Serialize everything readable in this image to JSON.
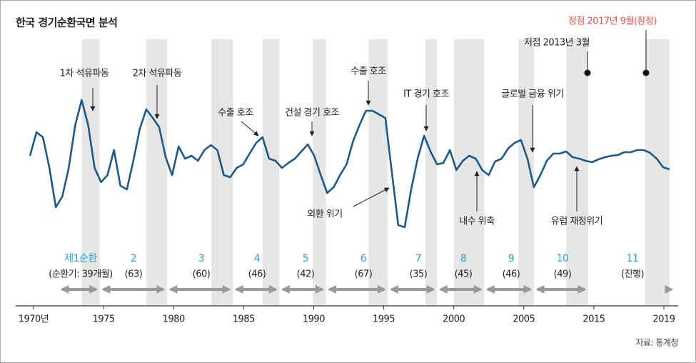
{
  "chart_data": {
    "type": "line",
    "title": "한국 경기순환국면 분석",
    "source": "자료: 통계청",
    "color": "#1d5a87",
    "band_color": "#e6e6e6",
    "xlim": [
      1970,
      2019.5
    ],
    "ylim": [
      0,
      125
    ],
    "x": [
      1970,
      1970.5,
      1971,
      1971.5,
      1972,
      1972.5,
      1973,
      1973.5,
      1974,
      1974.5,
      1975,
      1975.5,
      1976,
      1976.5,
      1977,
      1977.5,
      1978,
      1978.5,
      1979,
      1979.5,
      1980,
      1980.5,
      1981,
      1981.5,
      1982,
      1982.5,
      1983,
      1983.5,
      1984,
      1984.5,
      1985,
      1985.5,
      1986,
      1986.5,
      1987,
      1987.5,
      1988,
      1988.5,
      1989,
      1989.5,
      1990,
      1990.5,
      1991,
      1991.5,
      1992,
      1992.5,
      1993,
      1993.5,
      1994,
      1994.5,
      1995,
      1995.5,
      1996,
      1996.5,
      1997,
      1997.5,
      1998,
      1998.5,
      1999,
      1999.5,
      2000,
      2000.5,
      2001,
      2001.5,
      2002,
      2002.5,
      2003,
      2003.5,
      2004,
      2004.5,
      2005,
      2005.5,
      2006,
      2006.5,
      2007,
      2007.5,
      2008,
      2008.5,
      2009,
      2009.5,
      2010,
      2010.5,
      2011,
      2011.5,
      2012,
      2012.5,
      2013,
      2013.5,
      2014,
      2014.5,
      2015,
      2015.5,
      2016,
      2016.5,
      2017,
      2017.5,
      2018,
      2018.5,
      2019,
      2019.5
    ],
    "values": [
      66,
      82.5,
      79,
      57.5,
      30,
      37.5,
      57.5,
      87.5,
      105,
      87.5,
      57.5,
      47.5,
      52.5,
      70,
      45,
      42.5,
      62.5,
      85,
      98.5,
      92.5,
      86,
      65,
      52.5,
      72.5,
      64,
      66,
      62.5,
      70,
      73.5,
      70,
      52.5,
      51,
      57.5,
      60,
      67.5,
      75,
      79,
      64,
      62.5,
      57.5,
      61,
      64,
      69,
      74,
      66,
      52.5,
      40,
      44,
      52.5,
      60,
      76,
      87.5,
      97.5,
      97.5,
      95,
      92.5,
      55,
      17.5,
      16,
      42.5,
      64,
      80,
      69,
      60,
      61,
      70,
      56,
      62.5,
      66,
      64,
      56,
      52.5,
      62,
      64,
      71,
      75,
      77,
      64,
      44,
      52.5,
      62.5,
      67.5,
      67.5,
      69,
      65,
      64,
      62.5,
      61.5,
      63.5,
      65,
      66,
      66.5,
      68.5,
      68.5,
      70,
      70,
      68,
      64,
      58,
      56.5
    ],
    "shaded_periods": [
      [
        1974.0,
        1975.4
      ],
      [
        1979.0,
        1980.6
      ],
      [
        1984.05,
        1985.7
      ],
      [
        1988.0,
        1989.3
      ],
      [
        1991.9,
        1992.9
      ],
      [
        1996.2,
        1997.7
      ],
      [
        2000.6,
        2001.5
      ],
      [
        2002.8,
        2005.15
      ],
      [
        2007.8,
        2009.0
      ],
      [
        2011.5,
        2013.2
      ],
      [
        2017.6,
        2019.5
      ]
    ],
    "x_axis_labels": [
      "1970년",
      "1975",
      "1980",
      "1985",
      "1990",
      "1995",
      "2000",
      "2005",
      "2015",
      "2019"
    ],
    "annotations": [
      {
        "text": "1차 석유파동"
      },
      {
        "text": "2차 석유파동"
      },
      {
        "text": "수출 호조"
      },
      {
        "text": "건설 경기 호조"
      },
      {
        "text": "수출 호조"
      },
      {
        "text": "IT 경기 호조"
      },
      {
        "text": "글로벌 금융 위기"
      },
      {
        "text": "저점 2013년 3월"
      },
      {
        "text": "정점 2017년 9월(잠정)"
      },
      {
        "text": "외환 위기"
      },
      {
        "text": "내수 위축"
      },
      {
        "text": "유럽 재정위기"
      }
    ],
    "cycles": [
      {
        "label": "제1순환",
        "duration": "(순환기: 39개월)"
      },
      {
        "label": "2",
        "duration": "(63)"
      },
      {
        "label": "3",
        "duration": "(60)"
      },
      {
        "label": "4",
        "duration": "(46)"
      },
      {
        "label": "5",
        "duration": "(42)"
      },
      {
        "label": "6",
        "duration": "(67)"
      },
      {
        "label": "7",
        "duration": "(35)"
      },
      {
        "label": "8",
        "duration": "(45)"
      },
      {
        "label": "9",
        "duration": "(46)"
      },
      {
        "label": "10",
        "duration": "(49)"
      },
      {
        "label": "11",
        "duration": "(진행)"
      }
    ]
  }
}
